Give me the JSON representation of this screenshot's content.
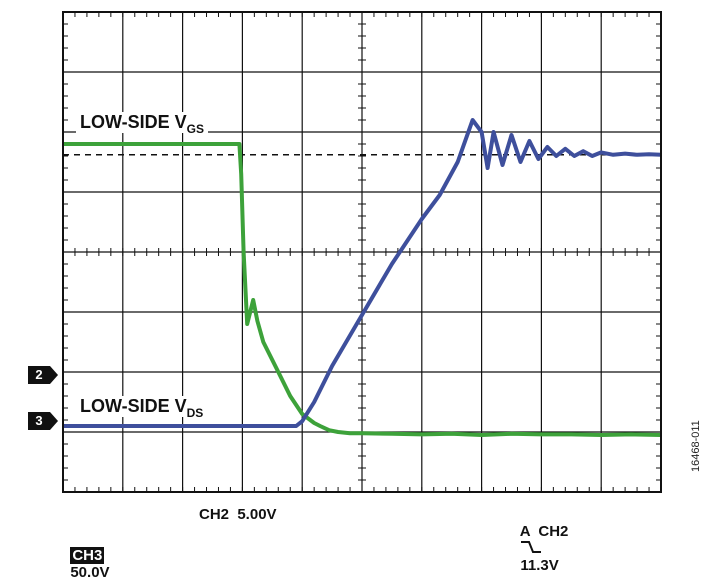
{
  "chart_data": {
    "type": "line",
    "title": "",
    "grid": true,
    "x_divisions": 10,
    "y_divisions": 8,
    "series": [
      {
        "name": "LOW-SIDE VGS",
        "channel": "CH2",
        "color": "#3da23a",
        "x": [
          0,
          2.95,
          2.98,
          3.02,
          3.08,
          3.18,
          3.25,
          3.35,
          3.6,
          3.8,
          4.0,
          4.2,
          4.3,
          4.45,
          4.6,
          4.8,
          5.0,
          5.5,
          6.0,
          6.5,
          7.0,
          7.5,
          8.0,
          8.5,
          9.0,
          9.5,
          10
        ],
        "y": [
          5.8,
          5.8,
          5.3,
          4.0,
          2.8,
          3.2,
          2.85,
          2.5,
          2.0,
          1.6,
          1.3,
          1.15,
          1.1,
          1.03,
          1.0,
          0.98,
          0.98,
          0.97,
          0.96,
          0.97,
          0.95,
          0.97,
          0.96,
          0.96,
          0.95,
          0.96,
          0.95
        ]
      },
      {
        "name": "LOW-SIDE VDS",
        "channel": "CH3",
        "color": "#3e4f9c",
        "x": [
          0,
          3.9,
          4.0,
          4.2,
          4.5,
          5.0,
          5.5,
          6.0,
          6.3,
          6.6,
          6.85,
          7.0,
          7.1,
          7.2,
          7.35,
          7.5,
          7.65,
          7.8,
          7.95,
          8.1,
          8.25,
          8.4,
          8.55,
          8.7,
          8.85,
          9.0,
          9.2,
          9.4,
          9.6,
          9.8,
          10
        ],
        "y": [
          1.1,
          1.1,
          1.18,
          1.5,
          2.1,
          2.95,
          3.8,
          4.55,
          4.95,
          5.5,
          6.2,
          6.0,
          5.4,
          6.0,
          5.45,
          5.95,
          5.5,
          5.85,
          5.55,
          5.75,
          5.6,
          5.72,
          5.6,
          5.68,
          5.6,
          5.66,
          5.62,
          5.64,
          5.62,
          5.63,
          5.62
        ]
      }
    ],
    "reference_line": 5.62,
    "trace_labels": [
      {
        "main": "LOW-SIDE V",
        "sub": "GS"
      },
      {
        "main": "LOW-SIDE V",
        "sub": "DS"
      }
    ],
    "channel_markers": [
      "2",
      "3"
    ],
    "ch2_scale": "CH2  5.00V",
    "trigger": {
      "prefix": "A  CH2",
      "level": "11.3V"
    },
    "ch3_label": "CH3",
    "ch3_scale": "50.0V",
    "figure_id": "16468-011"
  }
}
